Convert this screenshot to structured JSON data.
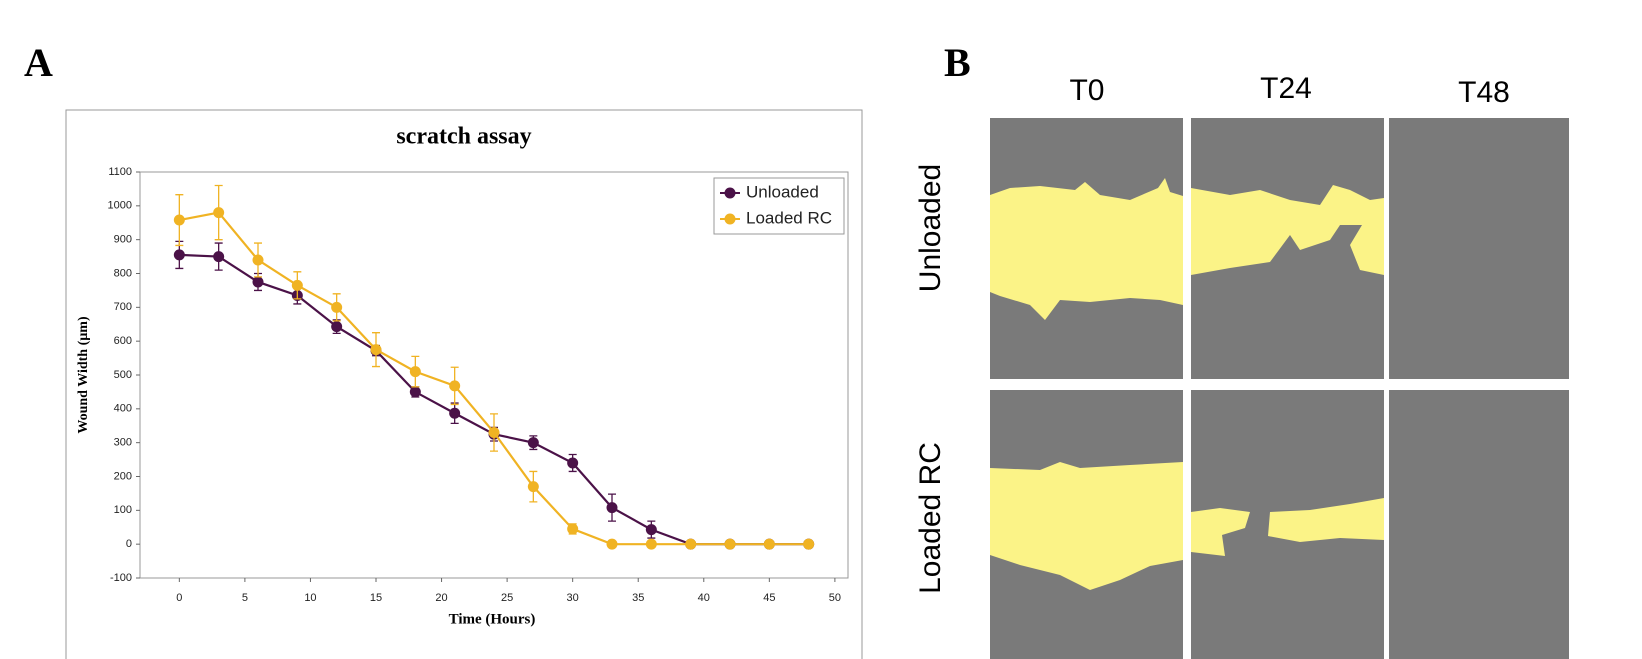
{
  "panel_labels": [
    "A",
    "B"
  ],
  "chart_data": {
    "type": "line",
    "title": "scratch assay",
    "x_label": "Time (Hours)",
    "y_label": "Wound Width (µm)",
    "x": [
      0,
      3,
      6,
      9,
      12,
      15,
      18,
      21,
      24,
      27,
      30,
      33,
      36,
      39,
      42,
      45,
      48
    ],
    "series": [
      {
        "name": "Unloaded",
        "color": "#4b1248",
        "values": [
          855,
          850,
          775,
          735,
          643,
          572,
          450,
          387,
          325,
          300,
          240,
          108,
          43,
          0,
          0,
          0,
          0
        ],
        "errors": [
          40,
          40,
          25,
          25,
          20,
          15,
          15,
          30,
          20,
          20,
          25,
          40,
          25,
          0,
          0,
          0,
          0
        ]
      },
      {
        "name": "Loaded RC",
        "color": "#f0b323",
        "values": [
          958,
          980,
          840,
          765,
          700,
          575,
          510,
          468,
          330,
          170,
          45,
          0,
          0,
          0,
          0,
          0,
          0
        ],
        "errors": [
          75,
          80,
          50,
          40,
          40,
          50,
          45,
          55,
          55,
          45,
          15,
          0,
          0,
          0,
          0,
          0,
          0
        ]
      }
    ],
    "xlim": [
      -3,
      51
    ],
    "xticks": [
      0,
      5,
      10,
      15,
      20,
      25,
      30,
      35,
      40,
      45,
      50
    ],
    "ylim": [
      -100,
      1100
    ],
    "yticks": [
      -100,
      0,
      100,
      200,
      300,
      400,
      500,
      600,
      700,
      800,
      900,
      1000,
      1100
    ],
    "legend": "upper right"
  },
  "images": {
    "columns": [
      "T0",
      "T24",
      "T48"
    ],
    "rows": [
      "Unloaded",
      "Loaded RC"
    ]
  }
}
